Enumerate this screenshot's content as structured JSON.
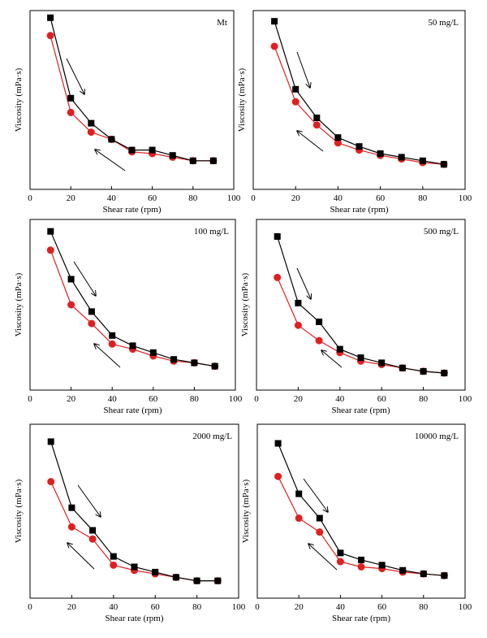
{
  "chart_data": [
    {
      "type": "line",
      "title": "Mt",
      "xlabel": "Shear rate (rpm)",
      "ylabel": "Viscosity (mPa·s)",
      "xlim": [
        0,
        100
      ],
      "xticks": [
        0,
        20,
        40,
        60,
        80,
        100
      ],
      "ylim": [
        0,
        100
      ],
      "yticks_shown": false,
      "grid": false,
      "series": [
        {
          "color": "#000000",
          "marker": "square",
          "x": [
            10,
            20,
            30,
            40,
            50,
            60,
            70,
            80,
            90
          ],
          "values": [
            96,
            51,
            37,
            28,
            22,
            22,
            19,
            16,
            16
          ]
        },
        {
          "color": "#e02020",
          "marker": "circle",
          "x": [
            10,
            20,
            30,
            40,
            50,
            60,
            70,
            80,
            90
          ],
          "values": [
            86,
            43,
            32,
            28,
            21,
            20,
            18,
            16,
            16
          ]
        }
      ]
    },
    {
      "type": "line",
      "title": "50 mg/L",
      "xlabel": "Shear rate (rpm)",
      "ylabel": "Viscosity (mPa·s)",
      "xlim": [
        0,
        100
      ],
      "xticks": [
        0,
        20,
        40,
        60,
        80,
        100
      ],
      "ylim": [
        0,
        100
      ],
      "yticks_shown": false,
      "grid": false,
      "series": [
        {
          "color": "#000000",
          "marker": "square",
          "x": [
            10,
            20,
            30,
            40,
            50,
            60,
            70,
            80,
            90
          ],
          "values": [
            94,
            56,
            40,
            29,
            24,
            20,
            18,
            16,
            14
          ]
        },
        {
          "color": "#e02020",
          "marker": "circle",
          "x": [
            10,
            20,
            30,
            40,
            50,
            60,
            70,
            80,
            90
          ],
          "values": [
            80,
            49,
            36,
            26,
            22,
            19,
            17,
            15,
            14
          ]
        }
      ]
    },
    {
      "type": "line",
      "title": "100 mg/L",
      "xlabel": "Shear rate (rpm)",
      "ylabel": "Viscosity (mPa·s)",
      "xlim": [
        0,
        100
      ],
      "xticks": [
        0,
        20,
        40,
        60,
        80,
        100
      ],
      "ylim": [
        0,
        100
      ],
      "yticks_shown": false,
      "grid": false,
      "series": [
        {
          "color": "#000000",
          "marker": "square",
          "x": [
            10,
            20,
            30,
            40,
            50,
            60,
            70,
            80,
            90
          ],
          "values": [
            93,
            65,
            46,
            32,
            26,
            22,
            18,
            16,
            14
          ]
        },
        {
          "color": "#e02020",
          "marker": "circle",
          "x": [
            10,
            20,
            30,
            40,
            50,
            60,
            70,
            80,
            90
          ],
          "values": [
            82,
            50,
            39,
            27,
            24,
            20,
            17,
            16,
            14
          ]
        }
      ]
    },
    {
      "type": "line",
      "title": "500 mg/L",
      "xlabel": "Shear rate (rpm)",
      "ylabel": "Viscosity (mPa·s)",
      "xlim": [
        0,
        100
      ],
      "xticks": [
        0,
        20,
        40,
        60,
        80,
        100
      ],
      "ylim": [
        0,
        100
      ],
      "yticks_shown": false,
      "grid": false,
      "series": [
        {
          "color": "#000000",
          "marker": "square",
          "x": [
            10,
            20,
            30,
            40,
            50,
            60,
            70,
            80,
            90
          ],
          "values": [
            90,
            51,
            40,
            24,
            19,
            16,
            13,
            11,
            10
          ]
        },
        {
          "color": "#e02020",
          "marker": "circle",
          "x": [
            10,
            20,
            30,
            40,
            50,
            60,
            70,
            80,
            90
          ],
          "values": [
            66,
            38,
            29,
            22,
            17,
            15,
            13,
            11,
            10
          ]
        }
      ]
    },
    {
      "type": "line",
      "title": "2000 mg/L",
      "xlabel": "Shear rate (rpm)",
      "ylabel": "Viscosity (mPa·s)",
      "xlim": [
        0,
        100
      ],
      "xticks": [
        0,
        20,
        40,
        60,
        80,
        100
      ],
      "ylim": [
        0,
        100
      ],
      "yticks_shown": false,
      "grid": false,
      "series": [
        {
          "color": "#000000",
          "marker": "square",
          "x": [
            10,
            20,
            30,
            40,
            50,
            60,
            70,
            80,
            90
          ],
          "values": [
            90,
            52,
            39,
            24,
            18,
            15,
            12,
            10,
            10
          ]
        },
        {
          "color": "#e02020",
          "marker": "circle",
          "x": [
            10,
            20,
            30,
            40,
            50,
            60,
            70,
            80,
            90
          ],
          "values": [
            67,
            41,
            34,
            19,
            16,
            14,
            12,
            10,
            10
          ]
        }
      ]
    },
    {
      "type": "line",
      "title": "10000 mg/L",
      "xlabel": "Shear rate (rpm)",
      "ylabel": "Viscosity (mPa·s)",
      "xlim": [
        0,
        100
      ],
      "xticks": [
        0,
        20,
        40,
        60,
        80,
        100
      ],
      "ylim": [
        0,
        100
      ],
      "yticks_shown": false,
      "grid": false,
      "series": [
        {
          "color": "#000000",
          "marker": "square",
          "x": [
            10,
            20,
            30,
            40,
            50,
            60,
            70,
            80,
            90
          ],
          "values": [
            89,
            60,
            46,
            26,
            22,
            19,
            16,
            14,
            13
          ]
        },
        {
          "color": "#e02020",
          "marker": "circle",
          "x": [
            10,
            20,
            30,
            40,
            50,
            60,
            70,
            80,
            90
          ],
          "values": [
            70,
            46,
            38,
            21,
            18,
            17,
            15,
            14,
            13
          ]
        }
      ]
    }
  ]
}
